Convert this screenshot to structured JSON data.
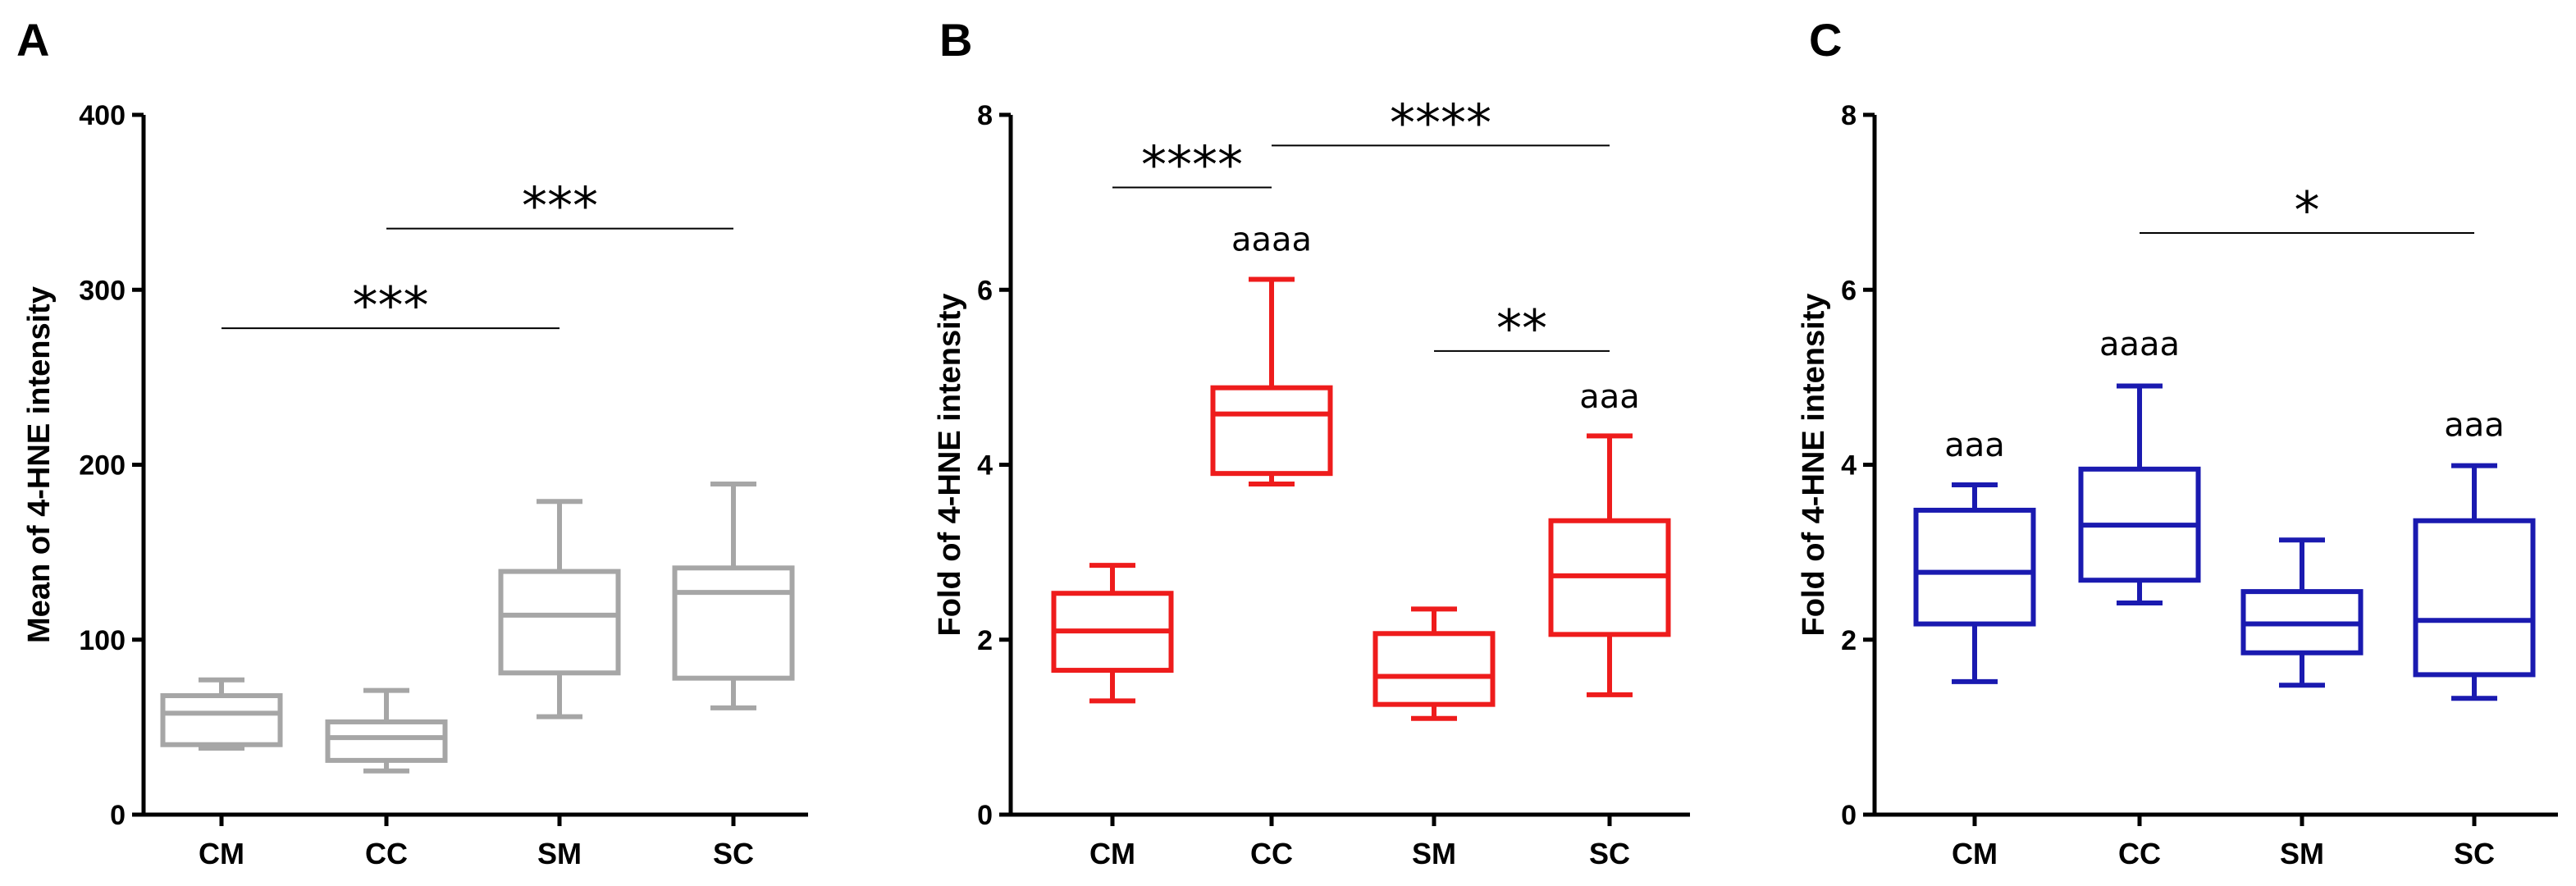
{
  "chart_data": [
    {
      "type": "boxplot",
      "panel": "A",
      "title": "",
      "xlabel": "",
      "ylabel": "Mean of 4-HNE intensity",
      "ylim": [
        0,
        400
      ],
      "yticks": [
        0,
        100,
        200,
        300,
        400
      ],
      "color": "#a6a6a6",
      "categories": [
        "CM",
        "CC",
        "SM",
        "SC"
      ],
      "boxes": [
        {
          "min": 38,
          "q1": 40,
          "median": 58,
          "q3": 68,
          "max": 77
        },
        {
          "min": 25,
          "q1": 31,
          "median": 44,
          "q3": 53,
          "max": 71
        },
        {
          "min": 56,
          "q1": 81,
          "median": 114,
          "q3": 139,
          "max": 179
        },
        {
          "min": 61,
          "q1": 78,
          "median": 127,
          "q3": 141,
          "max": 189
        }
      ],
      "brackets": [
        {
          "from": 0,
          "to": 2,
          "y": 278,
          "label": "***"
        },
        {
          "from": 1,
          "to": 3,
          "y": 335,
          "label": "***"
        }
      ],
      "annotations": []
    },
    {
      "type": "boxplot",
      "panel": "B",
      "title": "",
      "xlabel": "",
      "ylabel": "Fold of 4-HNE intensity",
      "ylim": [
        0,
        8
      ],
      "yticks": [
        0,
        2,
        4,
        6,
        8
      ],
      "color": "#ee1c1c",
      "categories": [
        "CM",
        "CC",
        "SM",
        "SC"
      ],
      "boxes": [
        {
          "min": 1.3,
          "q1": 1.65,
          "median": 2.1,
          "q3": 2.53,
          "max": 2.85
        },
        {
          "min": 3.78,
          "q1": 3.9,
          "median": 4.58,
          "q3": 4.88,
          "max": 6.12
        },
        {
          "min": 1.1,
          "q1": 1.26,
          "median": 1.58,
          "q3": 2.07,
          "max": 2.35
        },
        {
          "min": 1.37,
          "q1": 2.06,
          "median": 2.73,
          "q3": 3.36,
          "max": 4.33
        }
      ],
      "brackets": [
        {
          "from": 0,
          "to": 1,
          "y": 7.17,
          "label": "****"
        },
        {
          "from": 1,
          "to": 3,
          "y": 7.65,
          "label": "****"
        },
        {
          "from": 2,
          "to": 3,
          "y": 5.3,
          "label": "**"
        }
      ],
      "annotations": [
        {
          "category": 1,
          "y": 6.45,
          "text": "aaaa"
        },
        {
          "category": 3,
          "y": 4.65,
          "text": "aaa"
        }
      ]
    },
    {
      "type": "boxplot",
      "panel": "C",
      "title": "",
      "xlabel": "",
      "ylabel": "Fold of 4-HNE intensity",
      "ylim": [
        0,
        8
      ],
      "yticks": [
        0,
        2,
        4,
        6,
        8
      ],
      "color": "#1a1ab0",
      "categories": [
        "CM",
        "CC",
        "SM",
        "SC"
      ],
      "boxes": [
        {
          "min": 1.52,
          "q1": 2.18,
          "median": 2.77,
          "q3": 3.48,
          "max": 3.77
        },
        {
          "min": 2.42,
          "q1": 2.68,
          "median": 3.31,
          "q3": 3.95,
          "max": 4.9
        },
        {
          "min": 1.48,
          "q1": 1.85,
          "median": 2.18,
          "q3": 2.55,
          "max": 3.14
        },
        {
          "min": 1.33,
          "q1": 1.6,
          "median": 2.22,
          "q3": 3.36,
          "max": 3.99
        }
      ],
      "brackets": [
        {
          "from": 1,
          "to": 3,
          "y": 6.65,
          "label": "*"
        }
      ],
      "annotations": [
        {
          "category": 0,
          "y": 4.1,
          "text": "aaa"
        },
        {
          "category": 1,
          "y": 5.25,
          "text": "aaaa"
        },
        {
          "category": 3,
          "y": 4.33,
          "text": "aaa"
        }
      ]
    }
  ]
}
